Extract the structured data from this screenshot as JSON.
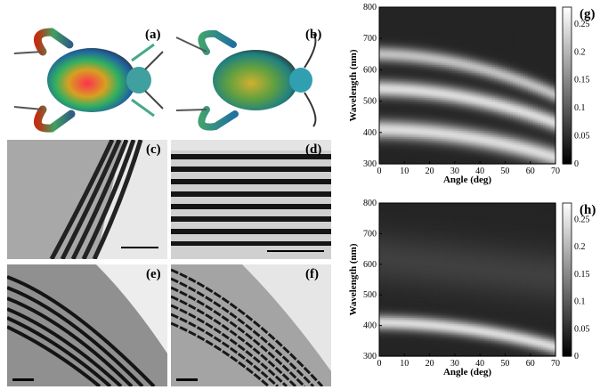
{
  "panels": {
    "a": "(a)",
    "b": "(b)",
    "c": "(c)",
    "d": "(d)",
    "e": "(e)",
    "f": "(f)",
    "g": "(g)",
    "h": "(h)"
  },
  "chart_data": [
    {
      "type": "heatmap",
      "panel": "(g)",
      "xlabel": "Angle (deg)",
      "ylabel": "Wavelength (nm)",
      "xlim": [
        0,
        70
      ],
      "ylim": [
        300,
        800
      ],
      "xticks": [
        0,
        10,
        20,
        30,
        40,
        50,
        60,
        70
      ],
      "yticks": [
        300,
        400,
        500,
        600,
        700,
        800
      ],
      "colorbar_ticks": [
        0,
        0.05,
        0.1,
        0.15,
        0.2,
        0.25
      ],
      "colorbar_range": [
        0,
        0.28
      ],
      "colormap": "grayscale",
      "bright_bands_at_0deg_nm": [
        650,
        540,
        410
      ],
      "bright_bands_at_70deg_nm": [
        520,
        430,
        320
      ]
    },
    {
      "type": "heatmap",
      "panel": "(h)",
      "xlabel": "Angle (deg)",
      "ylabel": "Wavelength (nm)",
      "xlim": [
        0,
        70
      ],
      "ylim": [
        300,
        800
      ],
      "xticks": [
        0,
        10,
        20,
        30,
        40,
        50,
        60,
        70
      ],
      "yticks": [
        300,
        400,
        500,
        600,
        700,
        800
      ],
      "colorbar_ticks": [
        0,
        0.05,
        0.1,
        0.15,
        0.2,
        0.25
      ],
      "colorbar_range": [
        0,
        0.28
      ],
      "colormap": "grayscale",
      "bright_bands_at_0deg_nm": [
        410
      ],
      "bright_bands_at_70deg_nm": [
        330
      ]
    }
  ]
}
